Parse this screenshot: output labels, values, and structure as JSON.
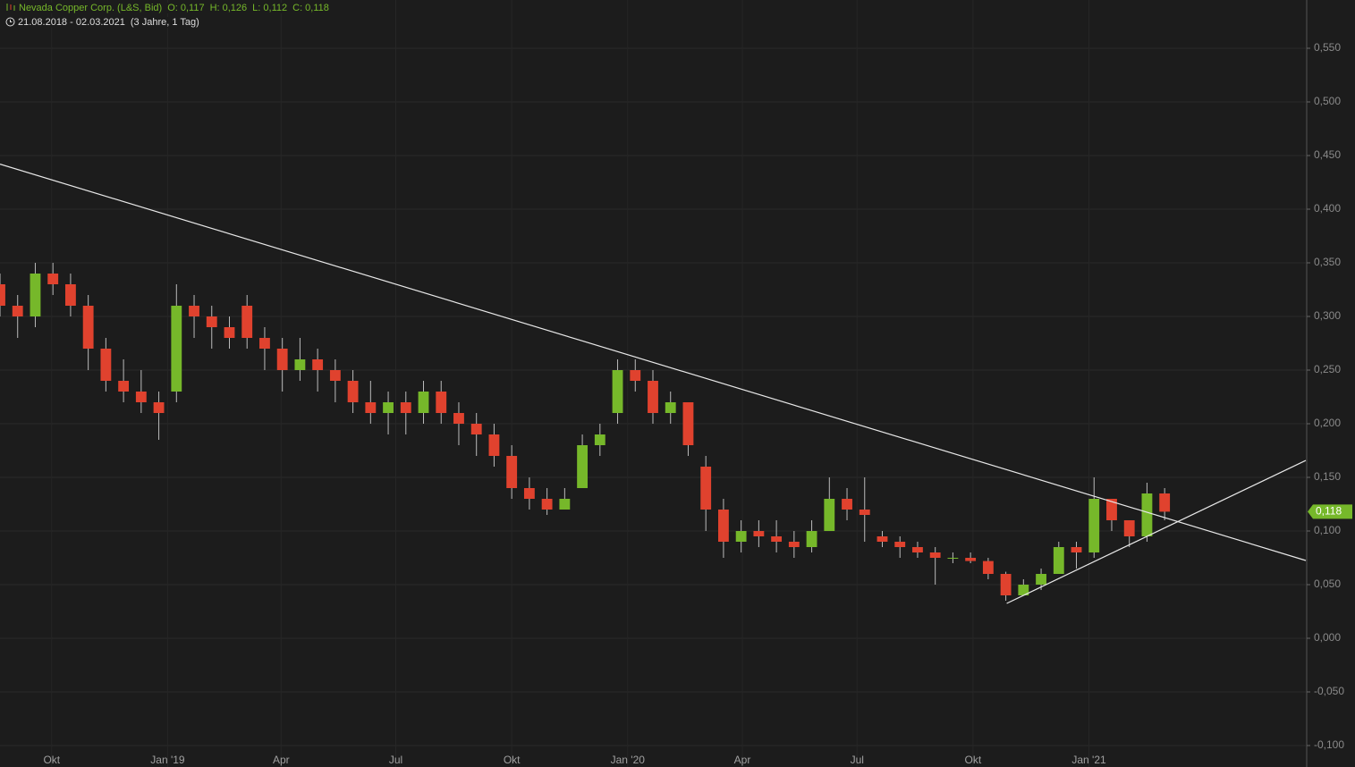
{
  "chart_data": {
    "type": "candlestick",
    "title": "Nevada Copper Corp. (L&S, Bid)",
    "ohlc_labels": [
      "O: 0,117",
      "H: 0,126",
      "L: 0,112",
      "C: 0,118"
    ],
    "date_range": "21.08.2018 - 02.03.2021",
    "period": "(3 Jahre, 1 Tag)",
    "up_color": "#76b82a",
    "down_color": "#e0422e",
    "xlim": [
      0,
      74
    ],
    "xticks": [
      {
        "value": 2.93,
        "label": "Okt"
      },
      {
        "value": 9.5,
        "label": "Jan '19"
      },
      {
        "value": 15.93,
        "label": "Apr"
      },
      {
        "value": 22.43,
        "label": "Jul"
      },
      {
        "value": 29,
        "label": "Okt"
      },
      {
        "value": 35.57,
        "label": "Jan '20"
      },
      {
        "value": 42.07,
        "label": "Apr"
      },
      {
        "value": 48.57,
        "label": "Jul"
      },
      {
        "value": 55.14,
        "label": "Okt"
      },
      {
        "value": 61.71,
        "label": "Jan '21"
      }
    ],
    "ylim": [
      -0.1,
      0.595
    ],
    "yticks": [
      {
        "value": -0.1,
        "label": "-0,100"
      },
      {
        "value": -0.05,
        "label": "-0,050"
      },
      {
        "value": 0,
        "label": "0,000"
      },
      {
        "value": 0.05,
        "label": "0,050"
      },
      {
        "value": 0.1,
        "label": "0,100"
      },
      {
        "value": 0.15,
        "label": "0,150"
      },
      {
        "value": 0.2,
        "label": "0,200"
      },
      {
        "value": 0.25,
        "label": "0,250"
      },
      {
        "value": 0.3,
        "label": "0,300"
      },
      {
        "value": 0.35,
        "label": "0,350"
      },
      {
        "value": 0.4,
        "label": "0,400"
      },
      {
        "value": 0.45,
        "label": "0,450"
      },
      {
        "value": 0.5,
        "label": "0,500"
      },
      {
        "value": 0.55,
        "label": "0,550"
      }
    ],
    "grid": true,
    "last_price": {
      "value": 0.118,
      "label": "0,118"
    },
    "candles": [
      [
        0.33,
        0.34,
        0.3,
        0.31
      ],
      [
        0.31,
        0.32,
        0.28,
        0.3
      ],
      [
        0.3,
        0.35,
        0.29,
        0.34
      ],
      [
        0.34,
        0.35,
        0.32,
        0.33
      ],
      [
        0.33,
        0.34,
        0.3,
        0.31
      ],
      [
        0.31,
        0.32,
        0.25,
        0.27
      ],
      [
        0.27,
        0.28,
        0.23,
        0.24
      ],
      [
        0.24,
        0.26,
        0.22,
        0.23
      ],
      [
        0.23,
        0.25,
        0.21,
        0.22
      ],
      [
        0.22,
        0.23,
        0.185,
        0.21
      ],
      [
        0.23,
        0.33,
        0.22,
        0.31
      ],
      [
        0.31,
        0.32,
        0.28,
        0.3
      ],
      [
        0.3,
        0.31,
        0.27,
        0.29
      ],
      [
        0.29,
        0.3,
        0.27,
        0.28
      ],
      [
        0.31,
        0.32,
        0.27,
        0.28
      ],
      [
        0.28,
        0.29,
        0.25,
        0.27
      ],
      [
        0.27,
        0.28,
        0.23,
        0.25
      ],
      [
        0.25,
        0.28,
        0.24,
        0.26
      ],
      [
        0.26,
        0.27,
        0.23,
        0.25
      ],
      [
        0.25,
        0.26,
        0.22,
        0.24
      ],
      [
        0.24,
        0.25,
        0.21,
        0.22
      ],
      [
        0.22,
        0.24,
        0.2,
        0.21
      ],
      [
        0.21,
        0.23,
        0.19,
        0.22
      ],
      [
        0.22,
        0.23,
        0.19,
        0.21
      ],
      [
        0.21,
        0.24,
        0.2,
        0.23
      ],
      [
        0.23,
        0.24,
        0.2,
        0.21
      ],
      [
        0.21,
        0.22,
        0.18,
        0.2
      ],
      [
        0.2,
        0.21,
        0.17,
        0.19
      ],
      [
        0.19,
        0.2,
        0.16,
        0.17
      ],
      [
        0.17,
        0.18,
        0.13,
        0.14
      ],
      [
        0.14,
        0.15,
        0.12,
        0.13
      ],
      [
        0.13,
        0.14,
        0.115,
        0.12
      ],
      [
        0.12,
        0.14,
        0.12,
        0.13
      ],
      [
        0.14,
        0.19,
        0.14,
        0.18
      ],
      [
        0.18,
        0.2,
        0.17,
        0.19
      ],
      [
        0.21,
        0.26,
        0.2,
        0.25
      ],
      [
        0.25,
        0.26,
        0.23,
        0.24
      ],
      [
        0.24,
        0.25,
        0.2,
        0.21
      ],
      [
        0.21,
        0.23,
        0.2,
        0.22
      ],
      [
        0.22,
        0.22,
        0.17,
        0.18
      ],
      [
        0.16,
        0.17,
        0.1,
        0.12
      ],
      [
        0.12,
        0.13,
        0.075,
        0.09
      ],
      [
        0.09,
        0.11,
        0.08,
        0.1
      ],
      [
        0.1,
        0.11,
        0.085,
        0.095
      ],
      [
        0.095,
        0.11,
        0.08,
        0.09
      ],
      [
        0.09,
        0.1,
        0.075,
        0.085
      ],
      [
        0.085,
        0.11,
        0.08,
        0.1
      ],
      [
        0.1,
        0.15,
        0.1,
        0.13
      ],
      [
        0.13,
        0.14,
        0.11,
        0.12
      ],
      [
        0.12,
        0.15,
        0.09,
        0.115
      ],
      [
        0.095,
        0.1,
        0.085,
        0.09
      ],
      [
        0.09,
        0.095,
        0.075,
        0.085
      ],
      [
        0.085,
        0.09,
        0.075,
        0.08
      ],
      [
        0.08,
        0.085,
        0.05,
        0.075
      ],
      [
        0.075,
        0.08,
        0.07,
        0.075
      ],
      [
        0.075,
        0.08,
        0.07,
        0.072
      ],
      [
        0.072,
        0.075,
        0.055,
        0.06
      ],
      [
        0.06,
        0.062,
        0.035,
        0.04
      ],
      [
        0.04,
        0.055,
        0.04,
        0.05
      ],
      [
        0.05,
        0.065,
        0.045,
        0.06
      ],
      [
        0.06,
        0.09,
        0.06,
        0.085
      ],
      [
        0.085,
        0.09,
        0.065,
        0.08
      ],
      [
        0.08,
        0.15,
        0.075,
        0.13
      ],
      [
        0.13,
        0.13,
        0.1,
        0.11
      ],
      [
        0.11,
        0.11,
        0.085,
        0.095
      ],
      [
        0.095,
        0.145,
        0.09,
        0.135
      ],
      [
        0.135,
        0.14,
        0.11,
        0.118
      ]
    ],
    "trendlines": [
      {
        "points": [
          [
            0,
            0.442
          ],
          [
            74,
            0.0725
          ]
        ]
      },
      {
        "points": [
          [
            57.05,
            0.0325
          ],
          [
            74,
            0.1658
          ]
        ]
      }
    ]
  }
}
